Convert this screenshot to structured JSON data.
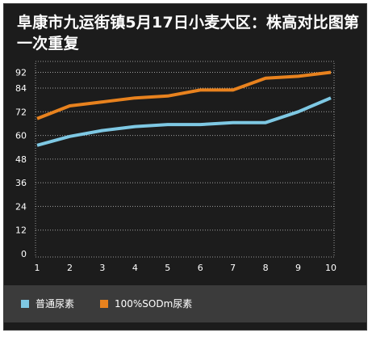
{
  "title": "阜康市九运街镇5月17日小麦大区：株高对比图第一次重复",
  "chart_data": {
    "type": "line",
    "title": "阜康市九运街镇5月17日小麦大区：株高对比图第一次重复",
    "xlabel": "",
    "ylabel": "",
    "categories": [
      "1",
      "2",
      "3",
      "4",
      "5",
      "6",
      "7",
      "8",
      "9",
      "10"
    ],
    "ylim": [
      0,
      92
    ],
    "yticks": [
      0,
      12,
      24,
      36,
      48,
      60,
      72,
      84,
      92
    ],
    "grid": true,
    "legend_position": "bottom-left",
    "series": [
      {
        "name": "普通尿素",
        "color": "#7ec8e3",
        "values": [
          55,
          59.5,
          62.5,
          64.5,
          65.5,
          65.5,
          66.5,
          66.5,
          72,
          79
        ]
      },
      {
        "name": "100%SODm尿素",
        "color": "#e8821e",
        "values": [
          68.5,
          75,
          77,
          79,
          80,
          83,
          83,
          89,
          90,
          92
        ]
      }
    ]
  }
}
